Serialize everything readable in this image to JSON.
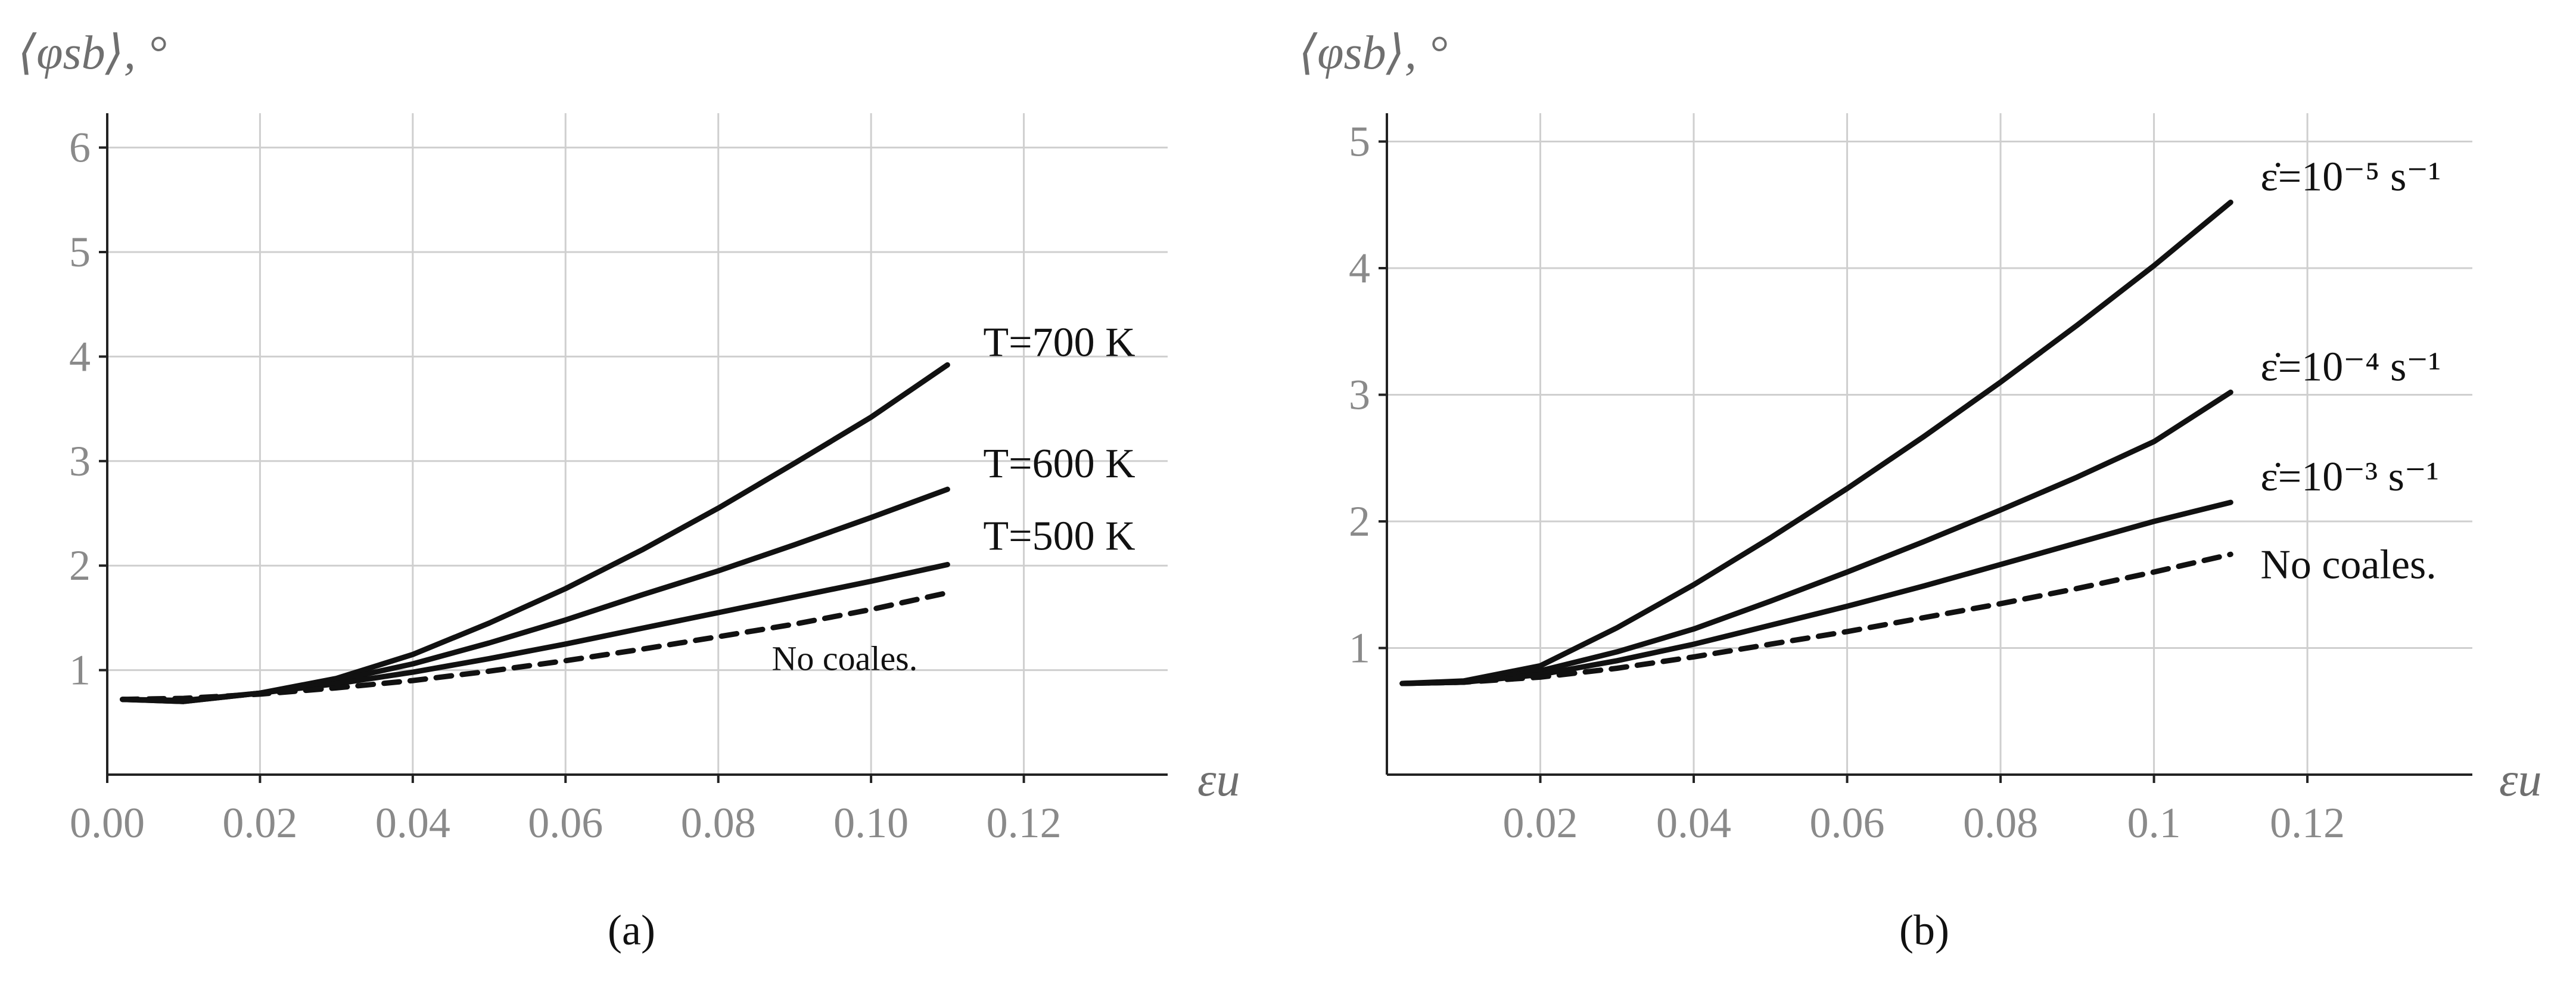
{
  "colors": {
    "curve": "#111111",
    "grid": "#cfcfcf",
    "tick_label": "#8a8a8a",
    "axis_title": "#6f6f6f"
  },
  "chart_data": [
    {
      "type": "line",
      "panel_label": "(a)",
      "ylabel": "⟨φsb⟩, °",
      "xlabel": "εu",
      "xlim": [
        0,
        0.14
      ],
      "ylim": [
        0,
        6.3
      ],
      "x_ticks": [
        0,
        0.02,
        0.04,
        0.06,
        0.08,
        0.1,
        0.12
      ],
      "x_tick_labels": [
        "0.00",
        "0.02",
        "0.04",
        "0.06",
        "0.08",
        "0.10",
        "0.12"
      ],
      "y_ticks": [
        1,
        2,
        3,
        4,
        5,
        6
      ],
      "y_tick_labels": [
        "1",
        "2",
        "3",
        "4",
        "5",
        "6"
      ],
      "grid": true,
      "series": [
        {
          "name": "T=700 K",
          "style": "solid",
          "x": [
            0.002,
            0.01,
            0.02,
            0.03,
            0.04,
            0.05,
            0.06,
            0.07,
            0.08,
            0.09,
            0.1,
            0.11
          ],
          "y": [
            0.72,
            0.7,
            0.78,
            0.92,
            1.15,
            1.45,
            1.78,
            2.15,
            2.55,
            2.98,
            3.42,
            3.92
          ]
        },
        {
          "name": "T=600 K",
          "style": "solid",
          "x": [
            0.002,
            0.01,
            0.02,
            0.03,
            0.04,
            0.05,
            0.06,
            0.07,
            0.08,
            0.09,
            0.1,
            0.11
          ],
          "y": [
            0.72,
            0.7,
            0.78,
            0.9,
            1.06,
            1.26,
            1.48,
            1.72,
            1.95,
            2.2,
            2.46,
            2.73
          ]
        },
        {
          "name": "T=500 K",
          "style": "solid",
          "x": [
            0.002,
            0.01,
            0.02,
            0.03,
            0.04,
            0.05,
            0.06,
            0.07,
            0.08,
            0.09,
            0.1,
            0.11
          ],
          "y": [
            0.72,
            0.71,
            0.78,
            0.87,
            0.98,
            1.11,
            1.25,
            1.4,
            1.55,
            1.7,
            1.85,
            2.01
          ]
        },
        {
          "name": "No coales.",
          "style": "dashed",
          "x": [
            0.002,
            0.01,
            0.02,
            0.03,
            0.04,
            0.05,
            0.06,
            0.07,
            0.08,
            0.09,
            0.1,
            0.11
          ],
          "y": [
            0.72,
            0.73,
            0.77,
            0.83,
            0.9,
            0.99,
            1.09,
            1.2,
            1.32,
            1.44,
            1.58,
            1.74
          ]
        }
      ],
      "annotations": [
        {
          "text": "No coales.",
          "x": 0.087,
          "y": 1.0
        }
      ]
    },
    {
      "type": "line",
      "panel_label": "(b)",
      "ylabel": "⟨φsb⟩, °",
      "xlabel": "εu",
      "xlim": [
        0,
        0.145
      ],
      "ylim": [
        0,
        5.2
      ],
      "x_ticks": [
        0.02,
        0.04,
        0.06,
        0.08,
        0.1,
        0.12
      ],
      "x_tick_labels": [
        "0.02",
        "0.04",
        "0.06",
        "0.08",
        "0.1",
        "0.12"
      ],
      "y_ticks": [
        1,
        2,
        3,
        4,
        5
      ],
      "y_tick_labels": [
        "1",
        "2",
        "3",
        "4",
        "5"
      ],
      "grid": true,
      "series": [
        {
          "name": "ε̇=10⁻⁵ s⁻¹",
          "style": "solid",
          "x": [
            0.002,
            0.01,
            0.02,
            0.03,
            0.04,
            0.05,
            0.06,
            0.07,
            0.08,
            0.09,
            0.1,
            0.11
          ],
          "y": [
            0.72,
            0.74,
            0.86,
            1.16,
            1.5,
            1.87,
            2.26,
            2.67,
            3.1,
            3.55,
            4.02,
            4.52
          ]
        },
        {
          "name": "ε̇=10⁻⁴ s⁻¹",
          "style": "solid",
          "x": [
            0.002,
            0.01,
            0.02,
            0.03,
            0.04,
            0.05,
            0.06,
            0.07,
            0.08,
            0.09,
            0.1,
            0.11
          ],
          "y": [
            0.72,
            0.73,
            0.82,
            0.97,
            1.15,
            1.37,
            1.6,
            1.84,
            2.09,
            2.35,
            2.63,
            3.02
          ]
        },
        {
          "name": "ε̇=10⁻³ s⁻¹",
          "style": "solid",
          "x": [
            0.002,
            0.01,
            0.02,
            0.03,
            0.04,
            0.05,
            0.06,
            0.07,
            0.08,
            0.09,
            0.1,
            0.11
          ],
          "y": [
            0.72,
            0.73,
            0.79,
            0.9,
            1.03,
            1.18,
            1.33,
            1.49,
            1.66,
            1.83,
            2.0,
            2.15
          ]
        },
        {
          "name": "No coales.",
          "style": "dashed",
          "x": [
            0.002,
            0.01,
            0.02,
            0.03,
            0.04,
            0.05,
            0.06,
            0.07,
            0.08,
            0.09,
            0.1,
            0.11
          ],
          "y": [
            0.72,
            0.73,
            0.77,
            0.84,
            0.93,
            1.03,
            1.13,
            1.24,
            1.35,
            1.47,
            1.6,
            1.74
          ]
        }
      ],
      "annotations": []
    }
  ]
}
